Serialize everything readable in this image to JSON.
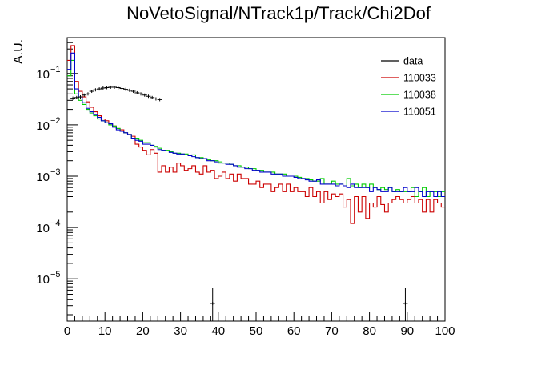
{
  "chart_data": {
    "type": "line",
    "title": "NoVetoSignal/NTrack1p/Track/Chi2Dof",
    "xlabel": "",
    "ylabel": "A.U.",
    "xlim": [
      0,
      100
    ],
    "ylim": [
      1.5e-06,
      0.5
    ],
    "yscale": "log",
    "xticks": [
      "0",
      "10",
      "20",
      "30",
      "40",
      "50",
      "60",
      "70",
      "80",
      "90",
      "100"
    ],
    "yticks": [
      {
        "value": 1e-05,
        "mantissa": "10",
        "exponent": "−5"
      },
      {
        "value": 0.0001,
        "mantissa": "10",
        "exponent": "−4"
      },
      {
        "value": 0.001,
        "mantissa": "10",
        "exponent": "−3"
      },
      {
        "value": 0.01,
        "mantissa": "10",
        "exponent": "−2"
      },
      {
        "value": 0.1,
        "mantissa": "10",
        "exponent": "−1"
      }
    ],
    "legend_position": "top-right",
    "bin_width": 1,
    "series": [
      {
        "name": "110033",
        "color": "#cc0000",
        "style": "histogram",
        "x_start": 0,
        "values": [
          0.18,
          0.35,
          0.07,
          0.045,
          0.035,
          0.028,
          0.022,
          0.018,
          0.015,
          0.013,
          0.012,
          0.0105,
          0.0095,
          0.0085,
          0.008,
          0.007,
          0.0065,
          0.006,
          0.0042,
          0.0037,
          0.0032,
          0.0026,
          0.0033,
          0.0028,
          0.0012,
          0.0016,
          0.0012,
          0.0015,
          0.0012,
          0.0018,
          0.0016,
          0.0013,
          0.0014,
          0.0016,
          0.0012,
          0.0011,
          0.0016,
          0.0012,
          0.0013,
          0.0009,
          0.001,
          0.0012,
          0.0009,
          0.0011,
          0.0008,
          0.0011,
          0.0009,
          0.0009,
          0.0007,
          0.0007,
          0.0008,
          0.0006,
          0.0007,
          0.0007,
          0.0005,
          0.0006,
          0.0007,
          0.0005,
          0.0007,
          0.0005,
          0.0006,
          0.0005,
          0.0005,
          0.0004,
          0.0006,
          0.0004,
          0.0005,
          0.0003,
          0.0005,
          0.00035,
          0.00045,
          0.0004,
          0.00045,
          0.00025,
          0.00035,
          0.00012,
          0.0004,
          0.0002,
          0.0004,
          0.00015,
          0.0003,
          0.00025,
          0.0004,
          0.00028,
          0.0002,
          0.0003,
          0.00035,
          0.0004,
          0.00035,
          0.0003,
          0.00035,
          0.0004,
          0.0003,
          0.00035,
          0.0002,
          0.00035,
          0.0002,
          0.00035,
          0.0003,
          0.00025
        ]
      },
      {
        "name": "110038",
        "color": "#00cc00",
        "style": "histogram",
        "x_start": 0,
        "values": [
          0.09,
          0.18,
          0.04,
          0.03,
          0.025,
          0.02,
          0.017,
          0.015,
          0.013,
          0.012,
          0.011,
          0.01,
          0.0095,
          0.0085,
          0.0075,
          0.007,
          0.0065,
          0.0055,
          0.0055,
          0.005,
          0.0045,
          0.0045,
          0.004,
          0.0038,
          0.0035,
          0.0032,
          0.0032,
          0.003,
          0.0028,
          0.0028,
          0.0027,
          0.0027,
          0.0025,
          0.0026,
          0.0023,
          0.0023,
          0.0022,
          0.0021,
          0.002,
          0.002,
          0.0019,
          0.0018,
          0.0018,
          0.0017,
          0.0016,
          0.0016,
          0.0015,
          0.0015,
          0.0014,
          0.0014,
          0.0013,
          0.0013,
          0.0012,
          0.0012,
          0.0012,
          0.0011,
          0.0011,
          0.0011,
          0.001,
          0.001,
          0.001,
          0.00095,
          0.0009,
          0.0009,
          0.00085,
          0.0008,
          0.0008,
          0.0009,
          0.0007,
          0.0007,
          0.0008,
          0.0007,
          0.0007,
          0.00065,
          0.0009,
          0.00065,
          0.0007,
          0.0006,
          0.0007,
          0.0006,
          0.0007,
          0.0006,
          0.00055,
          0.0006,
          0.00055,
          0.0006,
          0.0005,
          0.00055,
          0.0005,
          0.0005,
          0.0005,
          0.0006,
          0.0004,
          0.0005,
          0.0006,
          0.0004,
          0.0005,
          0.0005,
          0.0004,
          0.0005
        ]
      },
      {
        "name": "110051",
        "color": "#0000cc",
        "style": "histogram",
        "x_start": 0,
        "values": [
          0.12,
          0.25,
          0.05,
          0.035,
          0.027,
          0.021,
          0.018,
          0.016,
          0.014,
          0.012,
          0.011,
          0.0105,
          0.009,
          0.008,
          0.0075,
          0.007,
          0.0065,
          0.0055,
          0.005,
          0.0048,
          0.0042,
          0.0042,
          0.004,
          0.0037,
          0.0033,
          0.0032,
          0.0031,
          0.0029,
          0.0028,
          0.0027,
          0.0027,
          0.0026,
          0.0025,
          0.0024,
          0.0023,
          0.0022,
          0.0022,
          0.002,
          0.002,
          0.0019,
          0.0018,
          0.0018,
          0.0017,
          0.0017,
          0.0016,
          0.0015,
          0.0015,
          0.0014,
          0.0014,
          0.0013,
          0.0013,
          0.0012,
          0.0012,
          0.0012,
          0.0011,
          0.0011,
          0.0011,
          0.001,
          0.001,
          0.001,
          0.00095,
          0.0009,
          0.0009,
          0.00085,
          0.0008,
          0.0008,
          0.00085,
          0.0007,
          0.0007,
          0.0007,
          0.0007,
          0.00065,
          0.0007,
          0.00065,
          0.0006,
          0.0007,
          0.0006,
          0.0006,
          0.0006,
          0.0006,
          0.0005,
          0.0006,
          0.00055,
          0.0005,
          0.0005,
          0.0006,
          0.0005,
          0.0005,
          0.0005,
          0.0006,
          0.0005,
          0.0005,
          0.0006,
          0.0005,
          0.0004,
          0.0005,
          0.0005,
          0.0004,
          0.0005,
          0.0004
        ]
      },
      {
        "name": "data",
        "color": "#000000",
        "style": "errorbar",
        "points": [
          [
            1.5,
            0.033
          ],
          [
            2.5,
            0.034
          ],
          [
            3.5,
            0.035
          ],
          [
            4.5,
            0.038
          ],
          [
            5.5,
            0.04
          ],
          [
            6.5,
            0.045
          ],
          [
            7.5,
            0.048
          ],
          [
            8.5,
            0.05
          ],
          [
            9.5,
            0.052
          ],
          [
            10.5,
            0.053
          ],
          [
            11.5,
            0.054
          ],
          [
            12.5,
            0.054
          ],
          [
            13.5,
            0.053
          ],
          [
            14.5,
            0.051
          ],
          [
            15.5,
            0.049
          ],
          [
            16.5,
            0.047
          ],
          [
            17.5,
            0.045
          ],
          [
            18.5,
            0.042
          ],
          [
            19.5,
            0.04
          ],
          [
            20.5,
            0.038
          ],
          [
            21.5,
            0.036
          ],
          [
            22.5,
            0.034
          ],
          [
            23.5,
            0.032
          ],
          [
            24.5,
            0.031
          ],
          [
            38.5,
            3.3e-06
          ],
          [
            89.5,
            3.3e-06
          ]
        ],
        "error_points": [
          [
            38.5,
            3.3e-06
          ],
          [
            89.5,
            3.3e-06
          ]
        ]
      }
    ],
    "legend_order": [
      "data",
      "110033",
      "110038",
      "110051"
    ]
  }
}
